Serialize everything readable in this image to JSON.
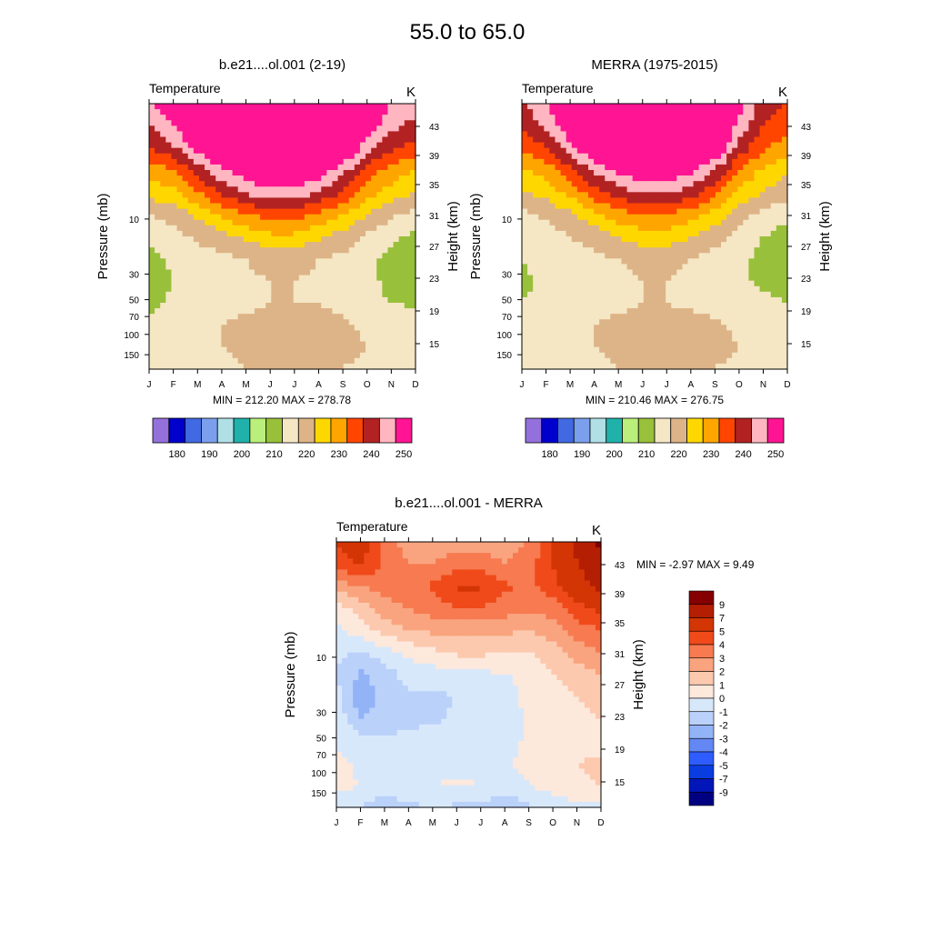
{
  "figure": {
    "title": "55.0 to  65.0"
  },
  "colors": {
    "abs": [
      "#9370db",
      "#0000cd",
      "#4169e1",
      "#7b9fec",
      "#b0e0e6",
      "#20b2aa",
      "#b9ef7a",
      "#98c03a",
      "#f5e6c4",
      "#ddb487",
      "#ffd700",
      "#ffa500",
      "#ff4500",
      "#b22222",
      "#ffb6c1",
      "#ff1493"
    ],
    "diff": [
      "#000080",
      "#0016b8",
      "#0a3de0",
      "#2e5cff",
      "#6388f3",
      "#93b3f7",
      "#bad1fa",
      "#d8e8fb",
      "#fde8dc",
      "#fcc9ae",
      "#f9a47f",
      "#f77a50",
      "#f04a1a",
      "#d33504",
      "#b41e02",
      "#850000"
    ]
  },
  "chart_data": [
    {
      "type": "heatmap",
      "title": "b.e21....ol.001 (2-19)",
      "left_label": "Temperature",
      "right_label": "K",
      "ylabel": "Pressure (mb)",
      "ylabel_right": "Height (km)",
      "x": [
        "J",
        "F",
        "M",
        "A",
        "M",
        "J",
        "J",
        "A",
        "S",
        "O",
        "N",
        "D"
      ],
      "yticks_pressure": [
        "10",
        "30",
        "50",
        "70",
        "100",
        "150"
      ],
      "yticks_height": [
        "43",
        "39",
        "35",
        "31",
        "27",
        "23",
        "19",
        "15"
      ],
      "stats": "MIN = 212.20  MAX = 278.78",
      "colorbar": {
        "labels": [
          "180",
          "190",
          "200",
          "210",
          "220",
          "230",
          "240",
          "250"
        ]
      },
      "rows_pressure": [
        1,
        2,
        3,
        5,
        7,
        10,
        20,
        30,
        50,
        70,
        100,
        150,
        200
      ],
      "z": [
        [
          250,
          254,
          262,
          270,
          276,
          278,
          278,
          275,
          268,
          258,
          250,
          248
        ],
        [
          245,
          250,
          258,
          266,
          272,
          275,
          275,
          272,
          264,
          253,
          247,
          243
        ],
        [
          240,
          244,
          252,
          260,
          266,
          268,
          268,
          265,
          258,
          247,
          241,
          238
        ],
        [
          232,
          235,
          242,
          249,
          254,
          257,
          257,
          253,
          247,
          238,
          233,
          230
        ],
        [
          227,
          229,
          235,
          241,
          246,
          248,
          248,
          245,
          240,
          232,
          228,
          225
        ],
        [
          220,
          222,
          226,
          231,
          235,
          237,
          237,
          234,
          230,
          225,
          221,
          219
        ],
        [
          216,
          218,
          221,
          223,
          226,
          229,
          229,
          226,
          223,
          219,
          216,
          214
        ],
        [
          213,
          216,
          218,
          219,
          220,
          222,
          222,
          220,
          219,
          216,
          214,
          212
        ],
        [
          212,
          215,
          217,
          218,
          219,
          220,
          220,
          219,
          218,
          216,
          214,
          213
        ],
        [
          213,
          216,
          217,
          218,
          219,
          220,
          220,
          220,
          218,
          216,
          215,
          214
        ],
        [
          217,
          218,
          219,
          220,
          221,
          222,
          222,
          222,
          221,
          219,
          218,
          218
        ],
        [
          218,
          219,
          220,
          220,
          221,
          222,
          222,
          222,
          221,
          220,
          219,
          218
        ],
        [
          219,
          219,
          219,
          219,
          220,
          220,
          220,
          220,
          220,
          219,
          219,
          219
        ]
      ]
    },
    {
      "type": "heatmap",
      "title": "MERRA (1975-2015)",
      "left_label": "Temperature",
      "right_label": "K",
      "ylabel": "Pressure (mb)",
      "ylabel_right": "Height (km)",
      "x": [
        "J",
        "F",
        "M",
        "A",
        "M",
        "J",
        "J",
        "A",
        "S",
        "O",
        "N",
        "D"
      ],
      "yticks_pressure": [
        "10",
        "30",
        "50",
        "70",
        "100",
        "150"
      ],
      "yticks_height": [
        "43",
        "39",
        "35",
        "31",
        "27",
        "23",
        "19",
        "15"
      ],
      "stats": "MIN = 210.46  MAX = 276.75",
      "colorbar": {
        "labels": [
          "180",
          "190",
          "200",
          "210",
          "220",
          "230",
          "240",
          "250"
        ]
      },
      "rows_pressure": [
        1,
        2,
        3,
        5,
        7,
        10,
        20,
        30,
        50,
        70,
        100,
        150,
        200
      ],
      "z": [
        [
          245,
          250,
          260,
          268,
          274,
          276,
          276,
          274,
          266,
          252,
          243,
          240
        ],
        [
          240,
          246,
          255,
          263,
          270,
          273,
          273,
          270,
          262,
          248,
          240,
          237
        ],
        [
          236,
          240,
          248,
          257,
          263,
          266,
          266,
          263,
          256,
          243,
          236,
          232
        ],
        [
          229,
          232,
          239,
          246,
          251,
          254,
          254,
          251,
          245,
          235,
          229,
          226
        ],
        [
          225,
          227,
          232,
          238,
          243,
          246,
          246,
          243,
          237,
          229,
          225,
          222
        ],
        [
          219,
          221,
          224,
          229,
          233,
          235,
          235,
          232,
          228,
          222,
          219,
          216
        ],
        [
          217,
          218,
          220,
          222,
          225,
          228,
          228,
          225,
          222,
          218,
          215,
          213
        ],
        [
          215,
          217,
          218,
          219,
          220,
          221,
          221,
          220,
          218,
          216,
          214,
          212
        ],
        [
          214,
          216,
          217,
          218,
          219,
          220,
          220,
          219,
          218,
          216,
          214,
          213
        ],
        [
          215,
          216,
          217,
          218,
          219,
          220,
          220,
          219,
          218,
          217,
          216,
          215
        ],
        [
          217,
          218,
          219,
          220,
          221,
          222,
          222,
          222,
          221,
          219,
          218,
          218
        ],
        [
          218,
          219,
          220,
          220,
          221,
          222,
          222,
          222,
          221,
          220,
          219,
          218
        ],
        [
          219,
          219,
          219,
          219,
          220,
          220,
          220,
          220,
          220,
          219,
          219,
          219
        ]
      ]
    },
    {
      "type": "heatmap",
      "title": "b.e21....ol.001 - MERRA",
      "left_label": "Temperature",
      "right_label": "K",
      "ylabel": "Pressure (mb)",
      "ylabel_right": "Height (km)",
      "x": [
        "J",
        "F",
        "M",
        "A",
        "M",
        "J",
        "J",
        "A",
        "S",
        "O",
        "N",
        "D"
      ],
      "yticks_pressure": [
        "10",
        "30",
        "50",
        "70",
        "100",
        "150"
      ],
      "yticks_height": [
        "43",
        "39",
        "35",
        "31",
        "27",
        "23",
        "19",
        "15"
      ],
      "stats": "MIN =  -2.97  MAX =    9.49",
      "colorbar": {
        "labels": [
          "9",
          "7",
          "5",
          "4",
          "3",
          "2",
          "1",
          "0",
          "-1",
          "-2",
          "-3",
          "-4",
          "-5",
          "-7",
          "-9"
        ]
      },
      "rows_pressure": [
        1,
        2,
        3,
        5,
        7,
        10,
        20,
        30,
        50,
        70,
        100,
        150,
        200
      ],
      "z": [
        [
          5,
          6,
          3.5,
          2.5,
          2.5,
          2.5,
          2.5,
          2.5,
          3,
          5,
          7.5,
          9.5
        ],
        [
          4.5,
          5,
          4,
          3,
          3,
          3.5,
          3.5,
          3,
          3.5,
          5,
          7,
          8.5
        ],
        [
          2.5,
          3,
          3.5,
          3.5,
          4.2,
          5.2,
          5.2,
          4.2,
          3.8,
          4.5,
          6,
          7.5
        ],
        [
          0.5,
          1.5,
          2.5,
          3,
          3.5,
          4,
          4,
          3.5,
          3.2,
          3.5,
          4.5,
          5.5
        ],
        [
          -0.3,
          0.5,
          1.5,
          2,
          2.2,
          2.3,
          2.3,
          2.2,
          2,
          2.5,
          3.5,
          4
        ],
        [
          -0.8,
          -1,
          -0.5,
          0.2,
          0.8,
          1.2,
          1.2,
          1,
          1,
          1.5,
          2.5,
          3
        ],
        [
          -1,
          -2.2,
          -1.5,
          -0.6,
          -0.5,
          -0.3,
          -0.2,
          -0.1,
          0.3,
          1,
          1.5,
          2
        ],
        [
          -0.6,
          -2.6,
          -1.8,
          -1.2,
          -1.3,
          -1,
          -0.5,
          -0.3,
          0.2,
          0.6,
          1,
          1.2
        ],
        [
          -0.4,
          -2,
          -1.6,
          -1.3,
          -1.2,
          -0.8,
          -0.5,
          -0.3,
          0.1,
          0.5,
          0.8,
          1
        ],
        [
          -0.3,
          -0.6,
          -0.8,
          -0.6,
          -0.5,
          -0.4,
          -0.3,
          -0.2,
          0.1,
          0.4,
          0.7,
          0.8
        ],
        [
          0.4,
          -0.3,
          -0.5,
          -0.4,
          -0.3,
          -0.2,
          -0.2,
          -0.1,
          0.2,
          0.6,
          1,
          1.1
        ],
        [
          0.3,
          0,
          -0.2,
          -0.1,
          0,
          0.1,
          0,
          -0.3,
          0,
          0.4,
          0.9,
          1
        ],
        [
          -0.5,
          -1,
          -1.8,
          -1.3,
          -1,
          -1.2,
          -1.4,
          -1.8,
          -1.2,
          -0.6,
          -0.3,
          -0.2
        ]
      ]
    }
  ]
}
